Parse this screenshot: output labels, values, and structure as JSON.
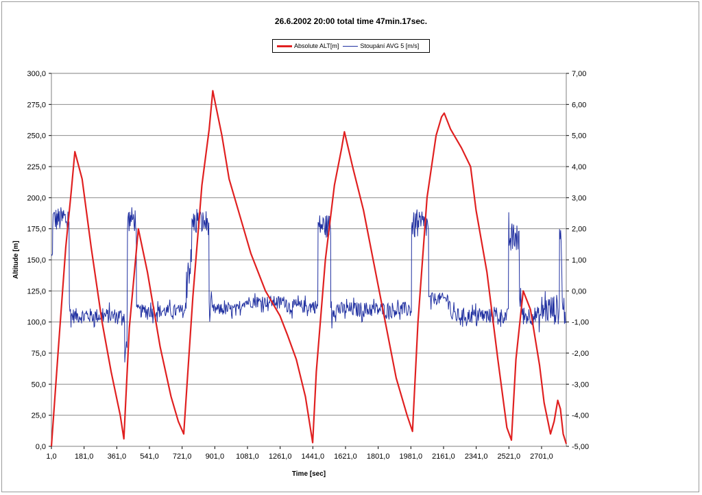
{
  "chart_data": {
    "type": "line",
    "title": "26.6.2002 20:00 total time 47min.17sec.",
    "xlabel": "Time [sec]",
    "ylabel": "Altitude [m]",
    "y2label": "",
    "xlim": [
      1,
      2837
    ],
    "ylim": [
      0,
      300
    ],
    "y2lim": [
      -5,
      7
    ],
    "grid": true,
    "legend_position": "top-center",
    "x_ticks": [
      "1,0",
      "181,0",
      "361,0",
      "541,0",
      "721,0",
      "901,0",
      "1081,0",
      "1261,0",
      "1441,0",
      "1621,0",
      "1801,0",
      "1981,0",
      "2161,0",
      "2341,0",
      "2521,0",
      "2701,0"
    ],
    "y_ticks": [
      "0,0",
      "25,0",
      "50,0",
      "75,0",
      "100,0",
      "125,0",
      "150,0",
      "175,0",
      "200,0",
      "225,0",
      "250,0",
      "275,0",
      "300,0"
    ],
    "y2_ticks": [
      "-5,00",
      "-4,00",
      "-3,00",
      "-2,00",
      "-1,00",
      "0,00",
      "1,00",
      "2,00",
      "3,00",
      "4,00",
      "5,00",
      "6,00",
      "7,00"
    ],
    "series": [
      {
        "name": "Absolute ALT[m]",
        "axis": "left",
        "color": "#e02020",
        "x": [
          1,
          40,
          80,
          110,
          130,
          170,
          220,
          280,
          330,
          380,
          400,
          430,
          480,
          530,
          600,
          660,
          700,
          730,
          780,
          830,
          870,
          890,
          905,
          940,
          980,
          1030,
          1100,
          1180,
          1260,
          1300,
          1350,
          1400,
          1440,
          1460,
          1510,
          1560,
          1600,
          1615,
          1660,
          1720,
          1780,
          1840,
          1900,
          1960,
          1990,
          2020,
          2070,
          2120,
          2150,
          2165,
          2200,
          2260,
          2310,
          2340,
          2400,
          2460,
          2510,
          2535,
          2560,
          2600,
          2640,
          2690,
          2715,
          2750,
          2770,
          2790,
          2805,
          2820,
          2837
        ],
        "values": [
          0,
          80,
          160,
          205,
          237,
          215,
          160,
          100,
          60,
          25,
          6,
          95,
          175,
          140,
          80,
          40,
          20,
          10,
          120,
          210,
          255,
          286,
          275,
          250,
          215,
          190,
          155,
          125,
          105,
          90,
          70,
          40,
          3,
          60,
          150,
          210,
          240,
          253,
          225,
          190,
          145,
          100,
          55,
          25,
          12,
          100,
          200,
          250,
          265,
          268,
          255,
          240,
          225,
          190,
          140,
          70,
          15,
          5,
          70,
          125,
          110,
          65,
          35,
          10,
          20,
          37,
          30,
          10,
          2
        ]
      },
      {
        "name": "Stoupání AVG 5 [m/s]",
        "axis": "right",
        "color": "#1f2fa0",
        "segments": [
          {
            "x0": 1,
            "x1": 8,
            "mean": 1.0,
            "amp": 1.0
          },
          {
            "x0": 8,
            "x1": 100,
            "mean": 2.3,
            "amp": 0.75
          },
          {
            "x0": 100,
            "x1": 110,
            "mean": -0.7,
            "amp": 0.9
          },
          {
            "x0": 110,
            "x1": 405,
            "mean": -0.8,
            "amp": 0.45
          },
          {
            "x0": 405,
            "x1": 420,
            "mean": -2.0,
            "amp": 1.1
          },
          {
            "x0": 420,
            "x1": 470,
            "mean": 2.3,
            "amp": 0.75
          },
          {
            "x0": 470,
            "x1": 745,
            "mean": -0.65,
            "amp": 0.4
          },
          {
            "x0": 745,
            "x1": 775,
            "mean": 0.8,
            "amp": 1.2
          },
          {
            "x0": 775,
            "x1": 870,
            "mean": 2.2,
            "amp": 0.75
          },
          {
            "x0": 870,
            "x1": 885,
            "mean": -0.7,
            "amp": 0.8
          },
          {
            "x0": 885,
            "x1": 1050,
            "mean": -0.6,
            "amp": 0.35
          },
          {
            "x0": 1050,
            "x1": 1300,
            "mean": -0.35,
            "amp": 0.35
          },
          {
            "x0": 1300,
            "x1": 1470,
            "mean": -0.5,
            "amp": 0.4
          },
          {
            "x0": 1470,
            "x1": 1540,
            "mean": 2.1,
            "amp": 0.7
          },
          {
            "x0": 1540,
            "x1": 1555,
            "mean": -0.5,
            "amp": 0.9
          },
          {
            "x0": 1555,
            "x1": 1985,
            "mean": -0.6,
            "amp": 0.45
          },
          {
            "x0": 1985,
            "x1": 2080,
            "mean": 2.1,
            "amp": 0.8
          },
          {
            "x0": 2080,
            "x1": 2095,
            "mean": -0.4,
            "amp": 0.7
          },
          {
            "x0": 2095,
            "x1": 2200,
            "mean": -0.25,
            "amp": 0.35
          },
          {
            "x0": 2200,
            "x1": 2520,
            "mean": -0.8,
            "amp": 0.45
          },
          {
            "x0": 2520,
            "x1": 2580,
            "mean": 1.7,
            "amp": 0.9
          },
          {
            "x0": 2580,
            "x1": 2595,
            "mean": -0.3,
            "amp": 0.8
          },
          {
            "x0": 2595,
            "x1": 2700,
            "mean": -0.8,
            "amp": 0.55
          },
          {
            "x0": 2700,
            "x1": 2800,
            "mean": -0.6,
            "amp": 0.9
          },
          {
            "x0": 2800,
            "x1": 2815,
            "mean": 1.7,
            "amp": 1.2
          },
          {
            "x0": 2815,
            "x1": 2837,
            "mean": -0.6,
            "amp": 1.0
          }
        ]
      }
    ]
  }
}
